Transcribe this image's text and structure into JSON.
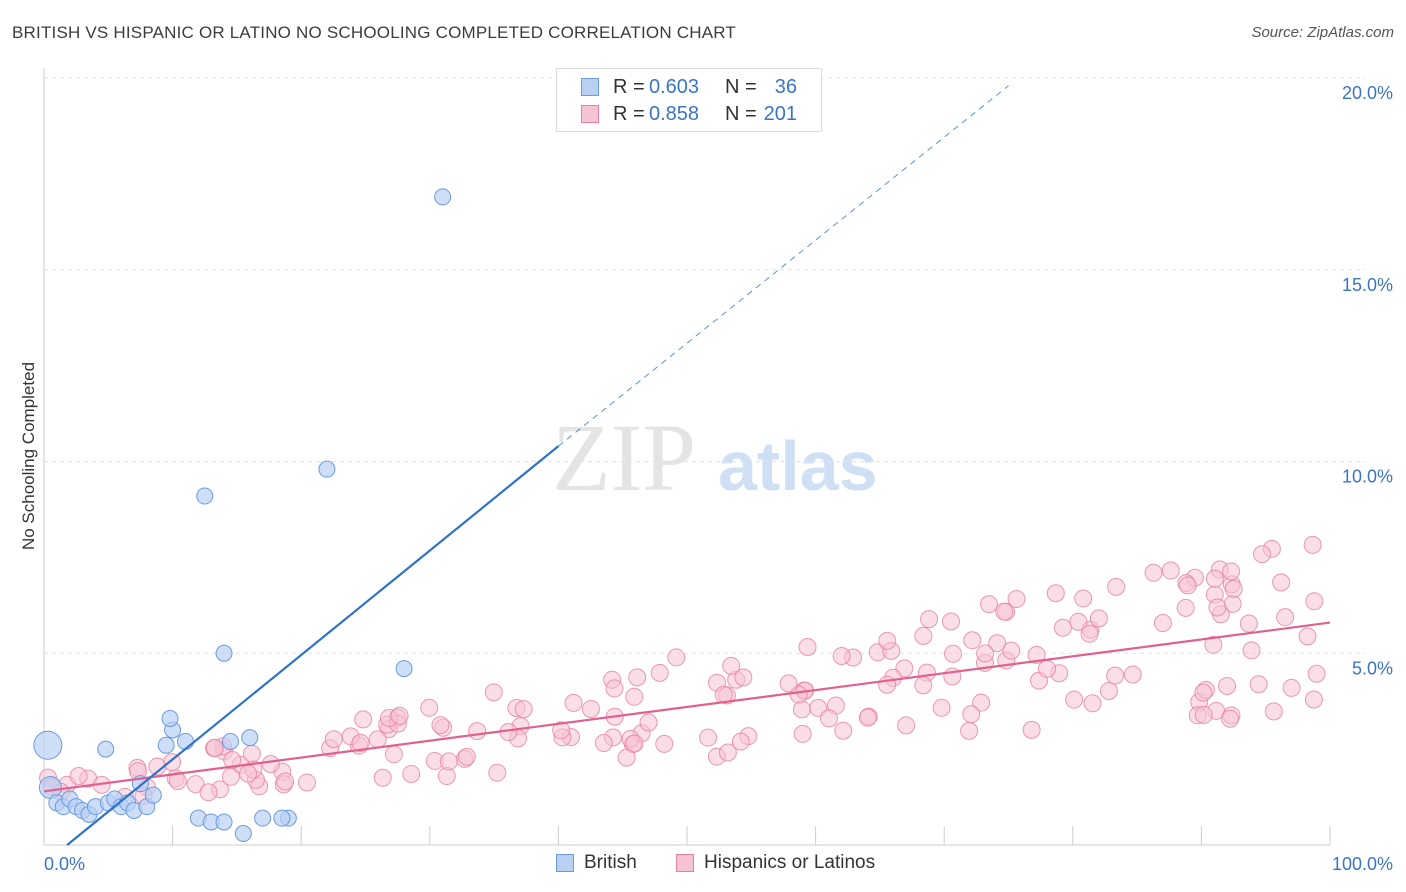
{
  "header": {
    "title": "BRITISH VS HISPANIC OR LATINO NO SCHOOLING COMPLETED CORRELATION CHART",
    "source": "Source: ZipAtlas.com"
  },
  "watermark": {
    "zip": "ZIP",
    "atlas": "atlas"
  },
  "legend": {
    "british": {
      "r_label": "R =",
      "r_value": "0.603",
      "n_label": "N =",
      "n_value": "36"
    },
    "hispanic": {
      "r_label": "R =",
      "r_value": "0.858",
      "n_label": "N =",
      "n_value": "201"
    }
  },
  "chart_data": {
    "type": "scatter",
    "ylabel": "No Schooling Completed",
    "xlim": [
      0,
      100
    ],
    "ylim": [
      0,
      20
    ],
    "x_tick_labels": [
      "0.0%",
      "100.0%"
    ],
    "y_ticks": [
      5,
      10,
      15,
      20
    ],
    "y_tick_labels": [
      "5.0%",
      "10.0%",
      "15.0%",
      "20.0%"
    ],
    "grid": true,
    "colors": {
      "british": "#6a9be0",
      "british_fill": "#b9d0f3",
      "british_line": "#2f72c8",
      "hispanic": "#e77fa2",
      "hispanic_fill": "#f6c3d4",
      "hispanic_line": "#e0618e",
      "tick_label": "#3a74c9"
    },
    "series": [
      {
        "name": "British",
        "trend": {
          "x0": 0,
          "y0": -0.3,
          "x1": 40,
          "y1": 10.4,
          "dash_to_x": 75,
          "dash_to_y": 19.8
        },
        "points": [
          [
            0.3,
            2.6,
            14
          ],
          [
            0.5,
            1.5,
            11
          ],
          [
            1,
            1.1,
            8
          ],
          [
            1.5,
            1.0,
            8
          ],
          [
            2,
            1.2,
            8
          ],
          [
            2.5,
            1.0,
            8
          ],
          [
            3,
            0.9,
            8
          ],
          [
            3.5,
            0.8,
            8
          ],
          [
            4,
            1.0,
            8
          ],
          [
            5,
            1.1,
            8
          ],
          [
            5.5,
            1.2,
            8
          ],
          [
            6,
            1.0,
            8
          ],
          [
            6.5,
            1.1,
            8
          ],
          [
            7,
            0.9,
            8
          ],
          [
            7.5,
            1.6,
            8
          ],
          [
            8,
            1.0,
            8
          ],
          [
            8.5,
            1.3,
            8
          ],
          [
            9.5,
            2.6,
            8
          ],
          [
            10,
            3.0,
            8
          ],
          [
            9.8,
            3.3,
            8
          ],
          [
            11,
            2.7,
            8
          ],
          [
            12,
            0.7,
            8
          ],
          [
            12.5,
            9.1,
            8
          ],
          [
            13,
            0.6,
            8
          ],
          [
            14,
            0.6,
            8
          ],
          [
            14,
            5.0,
            8
          ],
          [
            14.5,
            2.7,
            8
          ],
          [
            15.5,
            0.3,
            8
          ],
          [
            16,
            2.8,
            8
          ],
          [
            17,
            0.7,
            8
          ],
          [
            19,
            0.7,
            8
          ],
          [
            22,
            9.8,
            8
          ],
          [
            28,
            4.6,
            8
          ],
          [
            31,
            16.9,
            8
          ],
          [
            18.5,
            0.7,
            8
          ],
          [
            4.8,
            2.5,
            8
          ]
        ]
      },
      {
        "name": "Hispanics or Latinos",
        "trend": {
          "x0": 0,
          "y0": 1.4,
          "x1": 100,
          "y1": 5.8
        },
        "points": "generated"
      }
    ]
  },
  "bottom_legend": {
    "british": "British",
    "hispanic": "Hispanics or Latinos"
  }
}
